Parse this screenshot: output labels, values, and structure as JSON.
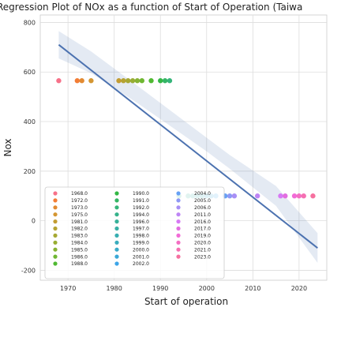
{
  "chart_data": {
    "type": "scatter",
    "title": "Regression Plot of NOx as a function of Start of Operation (Taiwa",
    "xlabel": "Start of operation",
    "ylabel": "Nox",
    "xlim": [
      1964,
      2026
    ],
    "ylim": [
      -240,
      830
    ],
    "xticks": [
      1970,
      1980,
      1990,
      2000,
      2010,
      2020
    ],
    "yticks": [
      -200,
      0,
      200,
      400,
      600,
      800
    ],
    "grid": true,
    "legend_position": "lower-left",
    "regression": {
      "x": [
        1968,
        2024
      ],
      "y": [
        710,
        -110
      ]
    },
    "confidence_band": {
      "x": [
        1968,
        1975,
        1985,
        1995,
        2000,
        2005,
        2015,
        2024
      ],
      "lower": [
        655,
        595,
        475,
        345,
        280,
        210,
        60,
        -170
      ],
      "upper": [
        765,
        683,
        545,
        405,
        335,
        265,
        140,
        -50
      ]
    },
    "series": [
      {
        "name": "1968.0",
        "color": "#f77189",
        "points": [
          [
            1968,
            565
          ]
        ]
      },
      {
        "name": "1972.0",
        "color": "#f37d35",
        "points": [
          [
            1972,
            565
          ]
        ]
      },
      {
        "name": "1973.0",
        "color": "#e28a32",
        "points": [
          [
            1973,
            565
          ]
        ]
      },
      {
        "name": "1975.0",
        "color": "#d49632",
        "points": [
          [
            1975,
            565
          ]
        ]
      },
      {
        "name": "1981.0",
        "color": "#c39c32",
        "points": [
          [
            1981,
            565
          ]
        ]
      },
      {
        "name": "1982.0",
        "color": "#b5a332",
        "points": [
          [
            1982,
            565
          ]
        ]
      },
      {
        "name": "1983.0",
        "color": "#a6a832",
        "points": [
          [
            1983,
            565
          ]
        ]
      },
      {
        "name": "1984.0",
        "color": "#98ad32",
        "points": [
          [
            1984,
            565
          ]
        ]
      },
      {
        "name": "1985.0",
        "color": "#86b232",
        "points": [
          [
            1985,
            565
          ]
        ]
      },
      {
        "name": "1986.0",
        "color": "#6fb732",
        "points": [
          [
            1986,
            565
          ]
        ]
      },
      {
        "name": "1988.0",
        "color": "#50b932",
        "points": [
          [
            1988,
            565
          ]
        ]
      },
      {
        "name": "1990.0",
        "color": "#33b744",
        "points": [
          [
            1990,
            565
          ]
        ]
      },
      {
        "name": "1991.0",
        "color": "#34b564",
        "points": [
          [
            1991,
            565
          ]
        ]
      },
      {
        "name": "1992.0",
        "color": "#35b479",
        "points": [
          [
            1992,
            565
          ]
        ]
      },
      {
        "name": "1994.0",
        "color": "#35b28a",
        "points": [
          [
            1994,
            100
          ]
        ]
      },
      {
        "name": "1996.0",
        "color": "#36b199",
        "points": [
          [
            1996,
            100
          ]
        ]
      },
      {
        "name": "1997.0",
        "color": "#37afa5",
        "points": [
          [
            1997,
            100
          ]
        ]
      },
      {
        "name": "1998.0",
        "color": "#37aeb1",
        "points": [
          [
            1998,
            100
          ]
        ]
      },
      {
        "name": "1999.0",
        "color": "#38acbd",
        "points": [
          [
            1999,
            100
          ]
        ]
      },
      {
        "name": "2000.0",
        "color": "#39aac9",
        "points": [
          [
            2000,
            100
          ]
        ]
      },
      {
        "name": "2001.0",
        "color": "#3aa8d7",
        "points": [
          [
            2001,
            100
          ]
        ]
      },
      {
        "name": "2002.0",
        "color": "#3ca5e8",
        "points": [
          [
            2002,
            100
          ]
        ]
      },
      {
        "name": "2004.0",
        "color": "#66a0f4",
        "points": [
          [
            2004,
            100
          ]
        ]
      },
      {
        "name": "2005.0",
        "color": "#8e98f5",
        "points": [
          [
            2005,
            100
          ]
        ]
      },
      {
        "name": "2006.0",
        "color": "#a88ff5",
        "points": [
          [
            2006,
            100
          ]
        ]
      },
      {
        "name": "2011.0",
        "color": "#be85f5",
        "points": [
          [
            2011,
            100
          ]
        ]
      },
      {
        "name": "2016.0",
        "color": "#d779f5",
        "points": [
          [
            2016,
            100
          ]
        ]
      },
      {
        "name": "2017.0",
        "color": "#e26ee0",
        "points": [
          [
            2017,
            100
          ]
        ]
      },
      {
        "name": "2019.0",
        "color": "#f26bd7",
        "points": [
          [
            2019,
            100
          ]
        ]
      },
      {
        "name": "2020.0",
        "color": "#f46ec3",
        "points": [
          [
            2020,
            100
          ]
        ]
      },
      {
        "name": "2021.0",
        "color": "#f56fb2",
        "points": [
          [
            2021,
            100
          ]
        ]
      },
      {
        "name": "2023.0",
        "color": "#f6709f",
        "points": [
          [
            2023,
            100
          ]
        ]
      }
    ]
  }
}
